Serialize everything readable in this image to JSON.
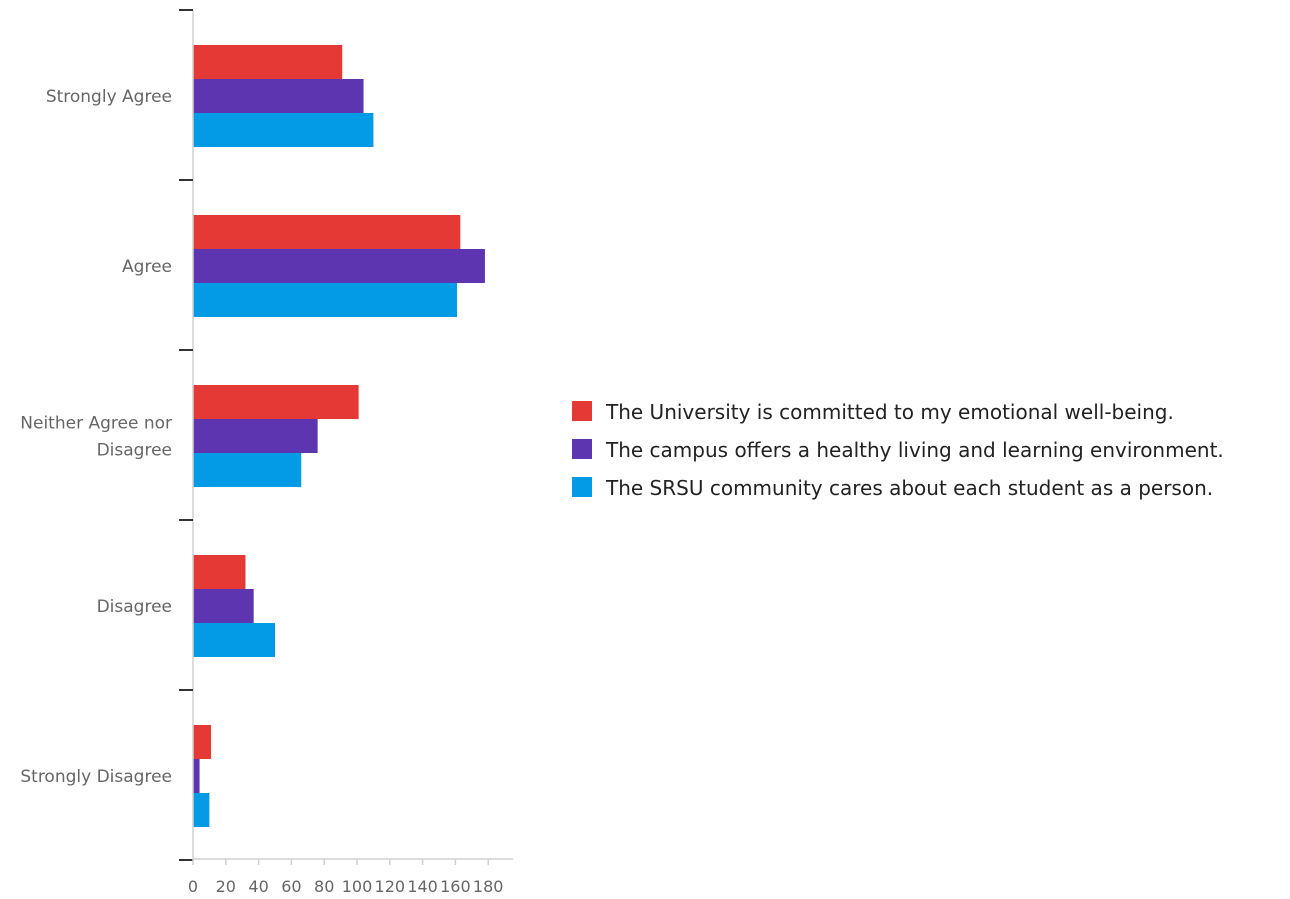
{
  "chart_data": {
    "type": "bar",
    "orientation": "horizontal",
    "title": "",
    "xlabel": "",
    "ylabel": "",
    "categories": [
      "Strongly Agree",
      "Agree",
      "Neither Agree nor Disagree",
      "Disagree",
      "Strongly Disagree"
    ],
    "category_lines": [
      [
        "Strongly Agree"
      ],
      [
        "Agree"
      ],
      [
        "Neither Agree nor",
        "Disagree"
      ],
      [
        "Disagree"
      ],
      [
        "Strongly Disagree"
      ]
    ],
    "series": [
      {
        "name": "The University is committed to my emotional well-being.",
        "color": "#e53935",
        "values": [
          91,
          163,
          101,
          32,
          11
        ]
      },
      {
        "name": "The campus offers a healthy living and learning environment.",
        "color": "#5e35b1",
        "values": [
          104,
          178,
          76,
          37,
          4
        ]
      },
      {
        "name": "The SRSU community cares about each student as a person.",
        "color": "#039be5",
        "values": [
          110,
          161,
          66,
          50,
          10
        ]
      }
    ],
    "xlim": [
      0,
      195
    ],
    "xticks": [
      0,
      20,
      40,
      60,
      80,
      100,
      120,
      140,
      160,
      180
    ],
    "grid": false,
    "legend": "right"
  }
}
